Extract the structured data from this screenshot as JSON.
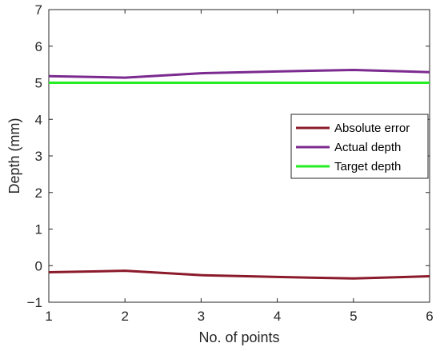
{
  "chart_data": {
    "type": "line",
    "xlabel": "No. of points",
    "ylabel": "Depth (mm)",
    "xlim": [
      1,
      6
    ],
    "ylim": [
      -1,
      7
    ],
    "x_ticks": [
      "1",
      "2",
      "3",
      "4",
      "5",
      "6"
    ],
    "y_ticks": [
      "−1",
      "0",
      "1",
      "2",
      "3",
      "4",
      "5",
      "6",
      "7"
    ],
    "x": [
      1,
      2,
      3,
      4,
      5,
      6
    ],
    "grid": false,
    "legend_position": "center-right",
    "series": [
      {
        "name": "Absolute error",
        "color": "#8b1a2b",
        "values": [
          -0.18,
          -0.14,
          -0.26,
          -0.31,
          -0.35,
          -0.29
        ]
      },
      {
        "name": "Actual depth",
        "color": "#7b2a8f",
        "values": [
          5.18,
          5.14,
          5.26,
          5.31,
          5.35,
          5.29
        ]
      },
      {
        "name": "Target depth",
        "color": "#22ee22",
        "values": [
          5.0,
          5.0,
          5.0,
          5.0,
          5.0,
          5.0
        ]
      }
    ]
  }
}
